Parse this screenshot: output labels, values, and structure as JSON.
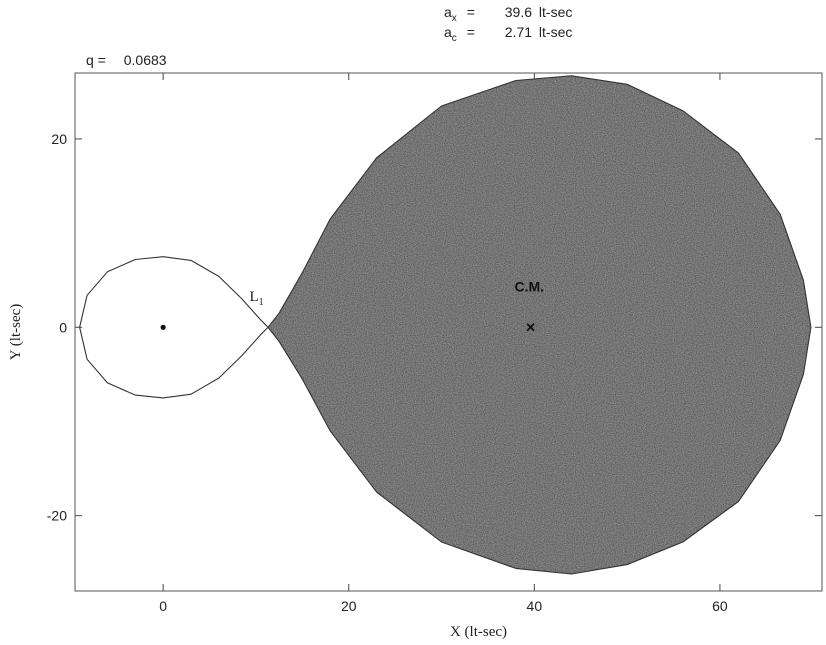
{
  "chart_data": {
    "type": "scatter",
    "title": "",
    "header": {
      "ax_sym": "a",
      "ax_sub": "x",
      "ax_eq": "=",
      "ax_value": "39.6",
      "ax_unit": "lt-sec",
      "ac_sym": "a",
      "ac_sub": "c",
      "ac_eq": "=",
      "ac_value": "2.71",
      "ac_unit": "lt-sec",
      "q_label": "q =",
      "q_value": "0.0683"
    },
    "xlabel": "X (lt-sec)",
    "ylabel": "Y (lt-sec)",
    "xlim": [
      -9.5,
      71
    ],
    "ylim": [
      -28,
      27
    ],
    "xticks": [
      0,
      20,
      40,
      60
    ],
    "yticks": [
      -20,
      0,
      20
    ],
    "grid": false,
    "legend": "none",
    "series": [
      {
        "kind": "roche-lobe-outline",
        "points": [
          [
            -9,
            0
          ],
          [
            -8.2,
            3.4
          ],
          [
            -6,
            5.9
          ],
          [
            -3,
            7.2
          ],
          [
            0,
            7.5
          ],
          [
            3,
            7.1
          ],
          [
            6,
            5.4
          ],
          [
            8.5,
            3.0
          ],
          [
            10.5,
            0.8
          ],
          [
            11.3,
            0
          ],
          [
            12.5,
            -1.5
          ],
          [
            15,
            -5.5
          ],
          [
            18,
            -11
          ],
          [
            23,
            -17.5
          ],
          [
            30,
            -22.8
          ],
          [
            38,
            -25.6
          ],
          [
            44,
            -26.2
          ],
          [
            50,
            -25.2
          ],
          [
            56,
            -22.8
          ],
          [
            62,
            -18.5
          ],
          [
            66.5,
            -12
          ],
          [
            69,
            -5
          ],
          [
            69.8,
            0
          ],
          [
            69,
            5
          ],
          [
            66.5,
            12
          ],
          [
            62,
            18.5
          ],
          [
            56,
            23
          ],
          [
            50,
            25.8
          ],
          [
            44,
            26.7
          ],
          [
            38,
            26.2
          ],
          [
            30,
            23.5
          ],
          [
            23,
            18
          ],
          [
            18,
            11.5
          ],
          [
            15,
            5.8
          ],
          [
            12.5,
            1.5
          ],
          [
            11.3,
            0
          ],
          [
            10.5,
            -0.8
          ],
          [
            8.5,
            -3.0
          ],
          [
            6,
            -5.4
          ],
          [
            3,
            -7.1
          ],
          [
            0,
            -7.5
          ],
          [
            -3,
            -7.2
          ],
          [
            -6,
            -5.9
          ],
          [
            -8.2,
            -3.4
          ],
          [
            -9,
            0
          ]
        ]
      },
      {
        "kind": "donor-lobe-fill",
        "points": [
          [
            11.3,
            0
          ],
          [
            12.5,
            -1.5
          ],
          [
            15,
            -5.5
          ],
          [
            18,
            -11
          ],
          [
            23,
            -17.5
          ],
          [
            30,
            -22.8
          ],
          [
            38,
            -25.6
          ],
          [
            44,
            -26.2
          ],
          [
            50,
            -25.2
          ],
          [
            56,
            -22.8
          ],
          [
            62,
            -18.5
          ],
          [
            66.5,
            -12
          ],
          [
            69,
            -5
          ],
          [
            69.8,
            0
          ],
          [
            69,
            5
          ],
          [
            66.5,
            12
          ],
          [
            62,
            18.5
          ],
          [
            56,
            23
          ],
          [
            50,
            25.8
          ],
          [
            44,
            26.7
          ],
          [
            38,
            26.2
          ],
          [
            30,
            23.5
          ],
          [
            23,
            18
          ],
          [
            18,
            11.5
          ],
          [
            15,
            5.8
          ],
          [
            12.5,
            1.5
          ],
          [
            11.3,
            0
          ]
        ]
      }
    ],
    "markers": [
      {
        "name": "compact-star",
        "x": 0,
        "y": 0,
        "symbol": "dot"
      },
      {
        "name": "center-of-mass",
        "x": 39.6,
        "y": 0,
        "symbol": "x"
      }
    ],
    "annotations": [
      {
        "text": "C.M.",
        "x": 39.8,
        "y": 3.8
      },
      {
        "text": "L",
        "sub": "1",
        "x": 9.3,
        "y": 2.8
      }
    ],
    "colors": {
      "lobe_fill": "#8c8c8c",
      "outline": "#333333",
      "frame": "#555555"
    }
  }
}
